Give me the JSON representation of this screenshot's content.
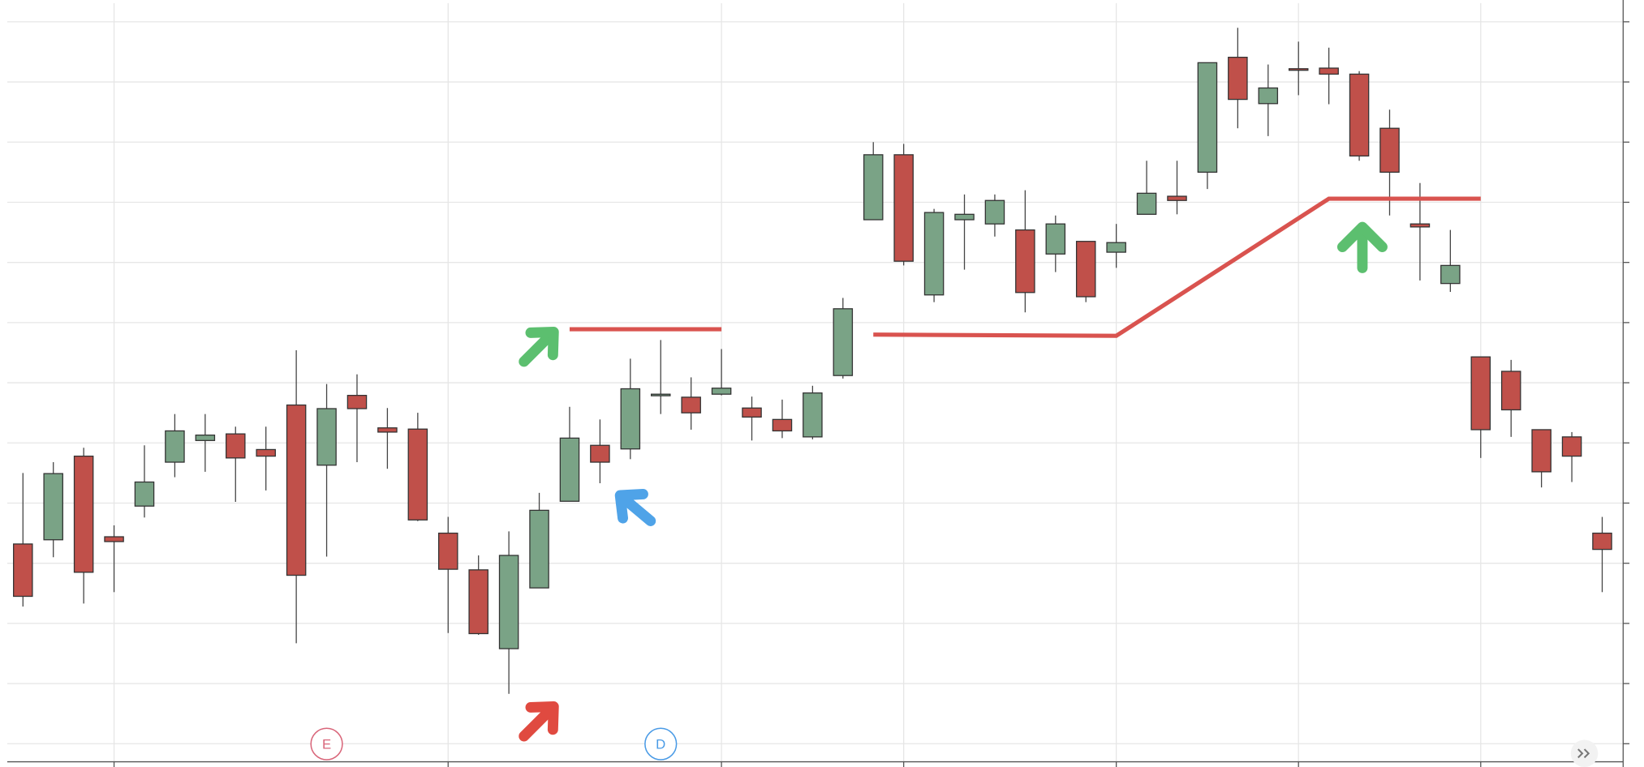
{
  "chart_data": {
    "type": "candlestick",
    "categories": [
      null,
      null,
      null,
      null,
      null,
      null,
      null,
      null,
      null,
      null,
      null,
      null,
      null,
      null,
      null,
      null,
      null,
      null,
      null,
      null,
      null,
      null,
      null,
      null,
      null,
      null,
      null,
      null,
      null,
      null,
      null,
      null,
      null,
      null,
      null,
      null,
      null,
      null,
      null,
      null,
      null,
      null,
      null,
      null,
      null,
      null,
      null,
      null,
      null,
      null,
      null,
      null,
      null
    ],
    "open": [
      33.2,
      33.9,
      47.8,
      34.4,
      39.5,
      46.8,
      50.4,
      51.5,
      48.9,
      56.3,
      46.3,
      57.9,
      52.5,
      52.3,
      35.0,
      28.9,
      15.8,
      25.9,
      40.3,
      49.6,
      49.0,
      57.9,
      57.6,
      58.1,
      55.8,
      53.9,
      51.0,
      61.2,
      87.1,
      97.9,
      74.6,
      87.1,
      86.4,
      85.4,
      81.4,
      83.5,
      81.7,
      88.0,
      91.0,
      95.0,
      114.1,
      106.4,
      112.2,
      112.3,
      111.3,
      102.3,
      86.4,
      76.5,
      64.3,
      61.9,
      52.2,
      51.0,
      35.0
    ],
    "high": [
      45.0,
      46.8,
      49.2,
      36.3,
      49.6,
      54.8,
      54.8,
      52.7,
      52.7,
      65.4,
      59.8,
      61.4,
      55.8,
      55.0,
      37.7,
      31.3,
      35.3,
      41.7,
      56.0,
      53.9,
      64.0,
      67.1,
      60.9,
      65.6,
      57.7,
      57.2,
      59.5,
      74.1,
      100.0,
      99.7,
      88.9,
      91.3,
      91.3,
      92.0,
      87.8,
      83.5,
      86.4,
      96.9,
      96.9,
      113.2,
      119.0,
      112.9,
      116.7,
      115.7,
      111.8,
      105.4,
      93.2,
      85.4,
      64.3,
      63.8,
      52.2,
      51.8,
      37.7
    ],
    "low": [
      22.8,
      31.0,
      23.3,
      25.2,
      37.6,
      44.3,
      45.2,
      40.2,
      42.1,
      16.7,
      31.1,
      46.8,
      45.7,
      37.0,
      18.4,
      18.1,
      8.3,
      25.9,
      40.3,
      43.3,
      47.3,
      54.8,
      52.2,
      57.9,
      50.4,
      50.8,
      50.6,
      60.7,
      87.1,
      79.5,
      73.4,
      78.8,
      84.3,
      71.7,
      78.4,
      73.4,
      79.1,
      88.0,
      88.0,
      92.2,
      102.3,
      101.0,
      107.8,
      106.3,
      96.9,
      87.8,
      77.0,
      75.1,
      47.5,
      51.0,
      42.6,
      43.5,
      25.2
    ],
    "close": [
      24.5,
      44.9,
      28.5,
      33.6,
      43.5,
      52.0,
      51.3,
      47.5,
      47.8,
      28.0,
      55.7,
      55.7,
      51.8,
      37.2,
      29.0,
      18.3,
      31.3,
      38.8,
      50.8,
      46.8,
      59.0,
      58.1,
      55.0,
      59.1,
      54.3,
      52.0,
      58.3,
      72.3,
      97.9,
      80.2,
      88.3,
      88.0,
      90.3,
      75.0,
      86.4,
      74.3,
      83.3,
      91.5,
      90.3,
      113.2,
      107.1,
      109.0,
      112.0,
      111.3,
      97.7,
      95.0,
      85.9,
      79.5,
      52.2,
      55.5,
      45.2,
      47.8,
      32.3
    ],
    "up_color": "#7aa386",
    "down_color": "#c0504a",
    "ylim": [
      -3,
      123.1
    ],
    "yticks": [
      0,
      10,
      20,
      30,
      40,
      50,
      60,
      70,
      80,
      90,
      100,
      110,
      120
    ],
    "xticks": [
      3,
      14,
      23,
      29,
      36,
      42,
      48
    ],
    "grid": true,
    "trendlines": [
      {
        "color": "#d9534f",
        "x": [
          18,
          23
        ],
        "y": [
          68.9,
          68.9
        ]
      },
      {
        "color": "#d9534f",
        "x": [
          28,
          36,
          43,
          48
        ],
        "y": [
          68.0,
          67.8,
          90.6,
          90.6
        ]
      }
    ],
    "events": [
      {
        "label": "E",
        "x": 10,
        "color": "#d9667a"
      },
      {
        "label": "D",
        "x": 21,
        "color": "#4a9be6"
      }
    ]
  }
}
